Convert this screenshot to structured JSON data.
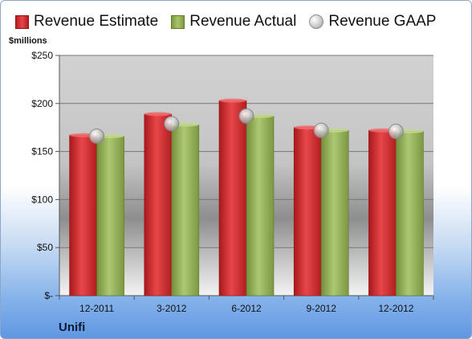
{
  "legend": {
    "estimate": "Revenue Estimate",
    "actual": "Revenue Actual",
    "gaap": "Revenue GAAP"
  },
  "units_label": "$millions",
  "company": "Unifi",
  "colors": {
    "estimate": "#d92c2f",
    "actual": "#97b35a",
    "gaap": "#c8c8c8"
  },
  "chart_data": {
    "type": "bar",
    "categories": [
      "12-2011",
      "3-2012",
      "6-2012",
      "9-2012",
      "12-2012"
    ],
    "series": [
      {
        "name": "Revenue Estimate",
        "values": [
          167,
          189,
          203,
          175,
          172
        ]
      },
      {
        "name": "Revenue Actual",
        "values": [
          166,
          178,
          187,
          172,
          171
        ]
      },
      {
        "name": "Revenue GAAP",
        "values": [
          166,
          179,
          187,
          172,
          171
        ]
      }
    ],
    "ylabel": "$millions",
    "ylim": [
      0,
      250
    ],
    "yticks": [
      0,
      50,
      100,
      150,
      200,
      250
    ],
    "ytick_labels": [
      "$-",
      "$50",
      "$100",
      "$150",
      "$200",
      "$250"
    ],
    "grid": true,
    "legend_position": "top"
  }
}
